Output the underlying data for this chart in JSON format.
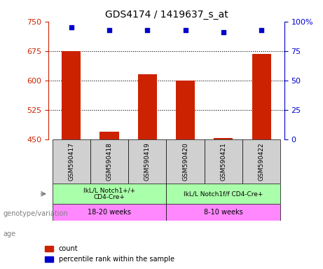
{
  "title": "GDS4174 / 1419637_s_at",
  "samples": [
    "GSM590417",
    "GSM590418",
    "GSM590419",
    "GSM590420",
    "GSM590421",
    "GSM590422"
  ],
  "counts": [
    675,
    470,
    615,
    600,
    453,
    668
  ],
  "percentile_ranks": [
    95,
    93,
    93,
    93,
    91,
    93
  ],
  "percentile_scale": 100,
  "ylim": [
    450,
    750
  ],
  "yticks": [
    450,
    525,
    600,
    675,
    750
  ],
  "right_yticks": [
    0,
    25,
    50,
    75,
    100
  ],
  "bar_color": "#cc2200",
  "scatter_color": "#0000cc",
  "grid_color": "#333333",
  "bar_width": 0.5,
  "genotype_groups": [
    {
      "label": "IkL/L Notch1+/+\nCD4-Cre+",
      "start": 0,
      "end": 3,
      "color": "#aaffaa"
    },
    {
      "label": "IkL/L Notch1f/f CD4-Cre+",
      "start": 3,
      "end": 6,
      "color": "#aaffaa"
    }
  ],
  "age_groups": [
    {
      "label": "18-20 weeks",
      "start": 0,
      "end": 3,
      "color": "#ff88ff"
    },
    {
      "label": "8-10 weeks",
      "start": 3,
      "end": 6,
      "color": "#ff88ff"
    }
  ],
  "genotype_label": "genotype/variation",
  "age_label": "age",
  "legend_count_label": "count",
  "legend_percentile_label": "percentile rank within the sample",
  "xlabel_color": "#cc2200",
  "right_axis_color": "#0000cc",
  "sample_box_color": "#d0d0d0"
}
